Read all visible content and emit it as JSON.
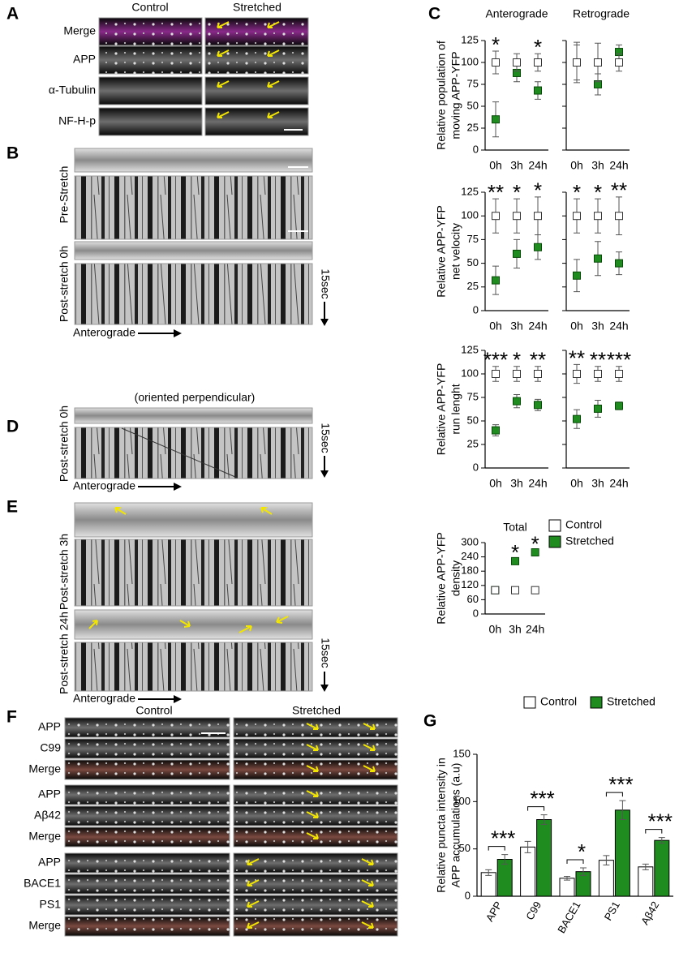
{
  "figure": {
    "A": {
      "letter": "A",
      "columns": [
        "Control",
        "Stretched"
      ],
      "rows": [
        "Merge",
        "APP",
        "α-Tubulin",
        "NF-H-p"
      ],
      "row_colors": [
        "#000000",
        "#1a8a1a",
        "#f08000",
        "#e00000"
      ]
    },
    "B": {
      "letter": "B",
      "rows": [
        "Pre-Stretch",
        "Post-stretch 0h"
      ],
      "time": "15sec",
      "direction": "Anterograde"
    },
    "C": {
      "letter": "C"
    },
    "D": {
      "letter": "D",
      "note": "(oriented perpendicular)",
      "row": "Post-stretch 0h",
      "time": "15sec",
      "direction": "Anterograde"
    },
    "E": {
      "letter": "E",
      "rows": [
        "Post-stretch 3h",
        "Post-stretch 24h"
      ],
      "time": "15sec",
      "direction": "Anterograde"
    },
    "F": {
      "letter": "F",
      "columns": [
        "Control",
        "Stretched"
      ],
      "rows": [
        "APP",
        "C99",
        "Merge",
        "APP",
        "Aβ42",
        "Merge",
        "APP",
        "BACE1",
        "PS1",
        "Merge"
      ],
      "row_colors": [
        "#1a8a1a",
        "#d00000",
        "#000000",
        "#1a8a1a",
        "#d00000",
        "#000000",
        "#1a8a1a",
        "#d00000",
        "#d000d0",
        "#000000"
      ]
    },
    "G": {
      "letter": "G"
    }
  },
  "chart_data": [
    {
      "type": "point",
      "title": "Anterograde",
      "ylabel": [
        "Relative population of",
        "moving APP-YFP"
      ],
      "categories": [
        "0h",
        "3h",
        "24h"
      ],
      "ylim": [
        0,
        125
      ],
      "yticks": [
        0,
        25,
        50,
        75,
        100,
        125
      ],
      "ytick_labels": true,
      "series": [
        {
          "color": "#ffffff",
          "values": [
            100,
            100,
            100
          ],
          "errors": [
            13,
            10,
            10
          ]
        },
        {
          "color": "#1e8c1e",
          "values": [
            35,
            88,
            68
          ],
          "errors": [
            20,
            10,
            10
          ]
        }
      ],
      "annotations": [
        "*",
        null,
        "*"
      ]
    },
    {
      "type": "point",
      "title": "Retrograde",
      "categories": [
        "0h",
        "3h",
        "24h"
      ],
      "ylim": [
        0,
        125
      ],
      "yticks": [
        0,
        25,
        50,
        75,
        100,
        125
      ],
      "ytick_labels": false,
      "series": [
        {
          "color": "#ffffff",
          "values": [
            100,
            100,
            100
          ],
          "errors": [
            23,
            22,
            10
          ]
        },
        {
          "color": "#1e8c1e",
          "values": [
            100,
            75,
            112
          ],
          "errors": [
            20,
            12,
            8
          ]
        }
      ],
      "annotations": [
        null,
        null,
        null
      ]
    },
    {
      "type": "point",
      "ylabel": [
        "Relative APP-YFP",
        "net velocity"
      ],
      "categories": [
        "0h",
        "3h",
        "24h"
      ],
      "ylim": [
        0,
        125
      ],
      "yticks": [
        0,
        25,
        50,
        75,
        100,
        125
      ],
      "ytick_labels": true,
      "series": [
        {
          "color": "#ffffff",
          "values": [
            100,
            100,
            100
          ],
          "errors": [
            18,
            18,
            20
          ]
        },
        {
          "color": "#1e8c1e",
          "values": [
            32,
            60,
            67
          ],
          "errors": [
            15,
            15,
            13
          ]
        }
      ],
      "annotations": [
        "**",
        "*",
        "*"
      ]
    },
    {
      "type": "point",
      "categories": [
        "0h",
        "3h",
        "24h"
      ],
      "ylim": [
        0,
        125
      ],
      "yticks": [
        0,
        25,
        50,
        75,
        100,
        125
      ],
      "ytick_labels": false,
      "series": [
        {
          "color": "#ffffff",
          "values": [
            100,
            100,
            100
          ],
          "errors": [
            18,
            18,
            20
          ]
        },
        {
          "color": "#1e8c1e",
          "values": [
            37,
            55,
            50
          ],
          "errors": [
            17,
            18,
            12
          ]
        }
      ],
      "annotations": [
        "*",
        "*",
        "**"
      ]
    },
    {
      "type": "point",
      "ylabel": [
        "Relative APP-YFP",
        "run lenght"
      ],
      "categories": [
        "0h",
        "3h",
        "24h"
      ],
      "ylim": [
        0,
        125
      ],
      "yticks": [
        0,
        25,
        50,
        75,
        100,
        125
      ],
      "ytick_labels": true,
      "series": [
        {
          "color": "#ffffff",
          "values": [
            100,
            100,
            100
          ],
          "errors": [
            8,
            8,
            8
          ]
        },
        {
          "color": "#1e8c1e",
          "values": [
            40,
            71,
            67
          ],
          "errors": [
            6,
            7,
            6
          ]
        }
      ],
      "annotations": [
        "***",
        "*",
        "**"
      ]
    },
    {
      "type": "point",
      "categories": [
        "0h",
        "3h",
        "24h"
      ],
      "ylim": [
        0,
        125
      ],
      "yticks": [
        0,
        25,
        50,
        75,
        100,
        125
      ],
      "ytick_labels": false,
      "series": [
        {
          "color": "#ffffff",
          "values": [
            100,
            100,
            100
          ],
          "errors": [
            10,
            8,
            8
          ]
        },
        {
          "color": "#1e8c1e",
          "values": [
            52,
            63,
            66
          ],
          "errors": [
            10,
            9,
            4
          ]
        }
      ],
      "annotations": [
        "**",
        "**",
        "***"
      ]
    },
    {
      "type": "point",
      "title": "Total",
      "ylabel": [
        "Relative APP-YFP",
        "density"
      ],
      "categories": [
        "0h",
        "3h",
        "24h"
      ],
      "ylim": [
        0,
        300
      ],
      "yticks": [
        0,
        60,
        120,
        180,
        240,
        300
      ],
      "ytick_labels": true,
      "legend": "right",
      "series": [
        {
          "name": "Control",
          "color": "#ffffff",
          "values": [
            100,
            100,
            100
          ],
          "errors": [
            12,
            12,
            12
          ]
        },
        {
          "name": "Stretched",
          "color": "#1e8c1e",
          "values": [
            100,
            222,
            259
          ],
          "errors": [
            12,
            10,
            9
          ]
        }
      ],
      "annotations": [
        null,
        "*",
        "*"
      ]
    },
    {
      "type": "bar",
      "ylabel": [
        "Relative puncta intensity in",
        "APP accumulations (a.u)"
      ],
      "categories": [
        "APP",
        "C99",
        "BACE1",
        "PS1",
        "Aβ42"
      ],
      "ylim": [
        0,
        150
      ],
      "yticks": [
        0,
        50,
        100,
        150
      ],
      "ytick_labels": true,
      "legend": "top",
      "series": [
        {
          "name": "Control",
          "color": "#ffffff",
          "values": [
            25,
            52,
            19,
            38,
            31
          ],
          "errors": [
            3,
            6,
            2,
            5,
            3
          ]
        },
        {
          "name": "Stretched",
          "color": "#1e8c1e",
          "values": [
            39,
            81,
            26,
            91,
            59
          ],
          "errors": [
            5,
            5,
            4,
            10,
            3
          ]
        }
      ],
      "annotations": [
        "***",
        "***",
        "*",
        "***",
        "***"
      ]
    }
  ]
}
